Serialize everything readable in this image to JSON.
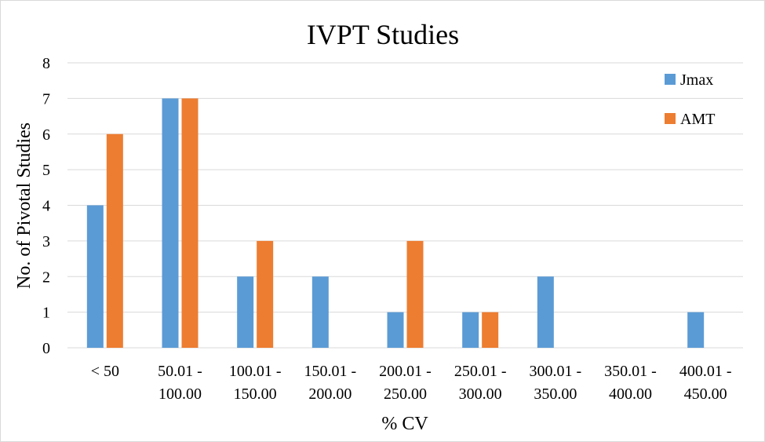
{
  "chart_data": {
    "type": "bar",
    "title": "IVPT Studies",
    "xlabel": "% CV",
    "ylabel": "No. of Pivotal Studies",
    "ylim": [
      0,
      8
    ],
    "yticks": [
      "0",
      "1",
      "2",
      "3",
      "4",
      "5",
      "6",
      "7",
      "8"
    ],
    "grid": true,
    "legend_position": "top-right",
    "categories": [
      [
        "< 50"
      ],
      [
        "50.01 -",
        "100.00"
      ],
      [
        "100.01 -",
        "150.00"
      ],
      [
        "150.01 -",
        "200.00"
      ],
      [
        "200.01 -",
        "250.00"
      ],
      [
        "250.01 -",
        "300.00"
      ],
      [
        "300.01 -",
        "350.00"
      ],
      [
        "350.01 -",
        "400.00"
      ],
      [
        "400.01 -",
        "450.00"
      ]
    ],
    "series": [
      {
        "name": "Jmax",
        "color": "#5b9bd5",
        "values": [
          4,
          7,
          2,
          2,
          1,
          1,
          2,
          0,
          1
        ]
      },
      {
        "name": "AMT",
        "color": "#ed7d31",
        "values": [
          6,
          7,
          3,
          0,
          3,
          1,
          0,
          0,
          0
        ]
      }
    ]
  }
}
